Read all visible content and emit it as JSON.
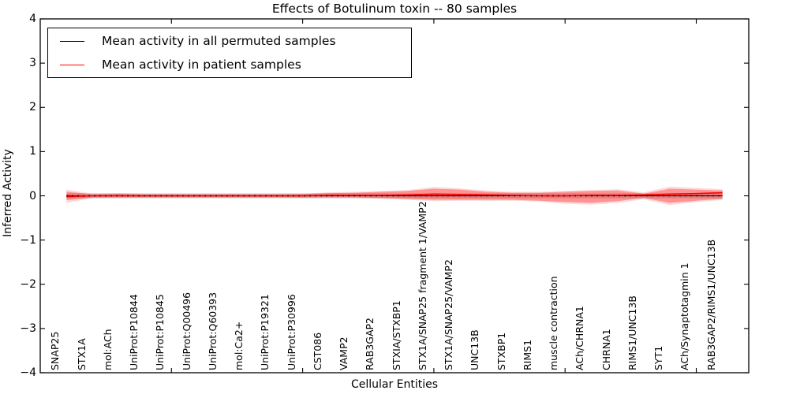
{
  "chart_data": {
    "type": "line",
    "title": "Effects of Botulinum toxin -- 80 samples",
    "xlabel": "Cellular Entities",
    "ylabel": "Inferred Activity",
    "xlim": [
      -1,
      26
    ],
    "ylim": [
      -4,
      4
    ],
    "yticks": [
      4,
      3,
      2,
      1,
      0,
      -1,
      -2,
      -3,
      -4
    ],
    "xticks_major": [
      4,
      9,
      14,
      19,
      24
    ],
    "grid": false,
    "legend_position": "upper left",
    "categories": [
      "SNAP25",
      "STX1A",
      "mol:ACh",
      "UniProt:P10844",
      "UniProt:P10845",
      "UniProt:Q00496",
      "UniProt:Q60393",
      "mol:Ca2+",
      "UniProt:P19321",
      "UniProt:P30996",
      "CST086",
      "VAMP2",
      "RAB3GAP2",
      "STXIA/STXBP1",
      "STX1A/SNAP25 fragment 1/VAMP2",
      "STX1A/SNAP25/VAMP2",
      "UNC13B",
      "STXBP1",
      "RIMS1",
      "muscle contraction",
      "ACh/CHRNA1",
      "CHRNA1",
      "RIMS1/UNC13B",
      "SYT1",
      "ACh/Synaptotagmin 1",
      "RAB3GAP2/RIMS1/UNC13B"
    ],
    "series": [
      {
        "name": "Mean activity in all permuted samples",
        "color": "#000000",
        "style": "solid",
        "values_const": 0
      },
      {
        "name": "Mean activity in patient samples",
        "color": "#ff0000",
        "style": "solid",
        "values": [
          -0.02,
          0,
          0,
          0,
          0,
          0,
          0,
          0,
          0,
          0,
          0.01,
          0.01,
          0.01,
          0.02,
          0.04,
          0.03,
          0.02,
          0.01,
          0,
          0,
          0.01,
          0.01,
          0.02,
          0.04,
          0.05,
          0.07
        ]
      }
    ],
    "bands": [
      {
        "name": "permuted-samples-std",
        "color": "#999999",
        "opacity": 0.4,
        "upper_const": 0.055,
        "lower_const": -0.055
      },
      {
        "name": "patient-samples-outer-band",
        "color": "#ff0000",
        "opacity": 0.15,
        "upper": [
          0.14,
          0.05,
          0.06,
          0.045,
          0.045,
          0.045,
          0.045,
          0.045,
          0.045,
          0.05,
          0.08,
          0.09,
          0.11,
          0.13,
          0.2,
          0.17,
          0.12,
          0.09,
          0.09,
          0.11,
          0.13,
          0.15,
          0.08,
          0.21,
          0.18,
          0.15
        ],
        "lower": [
          -0.16,
          -0.05,
          -0.05,
          -0.045,
          -0.045,
          -0.045,
          -0.045,
          -0.045,
          -0.045,
          -0.05,
          -0.05,
          -0.05,
          -0.07,
          -0.09,
          -0.12,
          -0.11,
          -0.11,
          -0.11,
          -0.13,
          -0.18,
          -0.2,
          -0.16,
          -0.08,
          -0.21,
          -0.14,
          -0.09
        ]
      },
      {
        "name": "patient-samples-inner-band",
        "color": "#ff0000",
        "opacity": 0.32,
        "upper": [
          0.09,
          0.035,
          0.045,
          0.03,
          0.03,
          0.03,
          0.03,
          0.03,
          0.03,
          0.035,
          0.06,
          0.07,
          0.09,
          0.11,
          0.16,
          0.14,
          0.09,
          0.07,
          0.07,
          0.09,
          0.11,
          0.12,
          0.05,
          0.16,
          0.14,
          0.12
        ],
        "lower": [
          -0.1,
          -0.035,
          -0.03,
          -0.03,
          -0.03,
          -0.03,
          -0.03,
          -0.03,
          -0.03,
          -0.035,
          -0.03,
          -0.03,
          -0.05,
          -0.07,
          -0.09,
          -0.09,
          -0.09,
          -0.09,
          -0.11,
          -0.14,
          -0.16,
          -0.12,
          -0.05,
          -0.16,
          -0.11,
          -0.07
        ]
      }
    ],
    "zero_line": {
      "y": 0,
      "color": "#000000",
      "style": "dotted"
    }
  }
}
